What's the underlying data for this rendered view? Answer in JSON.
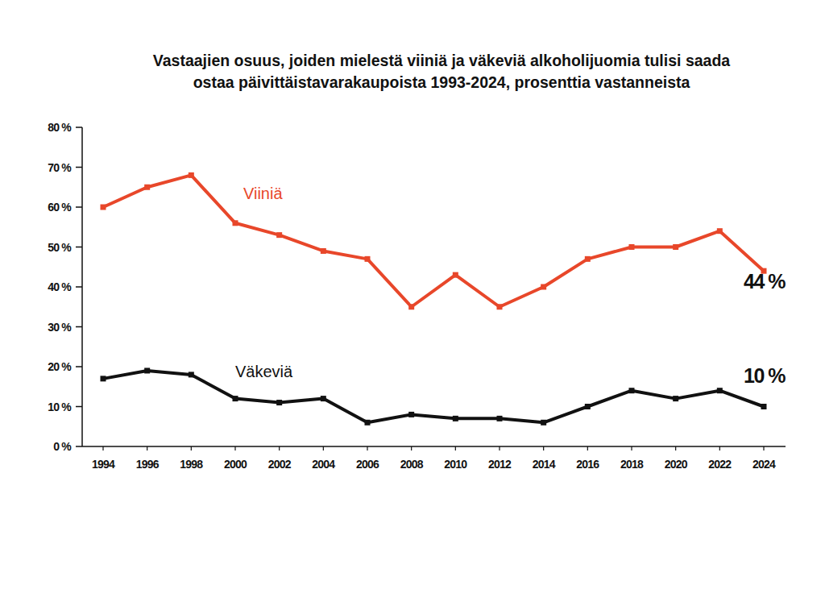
{
  "chart_data": {
    "type": "line",
    "title": [
      "Vastaajien osuus, joiden mielestä viiniä ja väkeviä alkoholijuomia tulisi saada",
      "ostaa päivittäistavarakaupoista 1993-2024, prosenttia vastanneista"
    ],
    "categories": [
      "1994",
      "1996",
      "1998",
      "2000",
      "2002",
      "2004",
      "2006",
      "2008",
      "2010",
      "2012",
      "2014",
      "2016",
      "2018",
      "2020",
      "2022",
      "2024"
    ],
    "series": [
      {
        "name": "Viiniä",
        "color": "#e8472a",
        "marker": "square",
        "values": [
          60,
          65,
          68,
          56,
          53,
          49,
          47,
          35,
          43,
          35,
          40,
          47,
          50,
          50,
          54,
          44
        ]
      },
      {
        "name": "Väkeviä",
        "color": "#111111",
        "marker": "square",
        "values": [
          17,
          19,
          18,
          12,
          11,
          12,
          6,
          8,
          7,
          7,
          6,
          10,
          14,
          12,
          14,
          10
        ]
      }
    ],
    "ylim": [
      0,
      80
    ],
    "yticks": [
      {
        "value": 0,
        "label": "0 %"
      },
      {
        "value": 10,
        "label": "10 %"
      },
      {
        "value": 20,
        "label": "20 %"
      },
      {
        "value": 30,
        "label": "30 %"
      },
      {
        "value": 40,
        "label": "40 %"
      },
      {
        "value": 50,
        "label": "50 %"
      },
      {
        "value": 60,
        "label": "60 %"
      },
      {
        "value": 70,
        "label": "70 %"
      },
      {
        "value": 80,
        "label": "80 %"
      }
    ],
    "grid": false,
    "annotations": [
      {
        "text": "44 %",
        "x": "2024",
        "y": 44
      },
      {
        "text": "10 %",
        "x": "2024",
        "y": 10
      }
    ]
  }
}
